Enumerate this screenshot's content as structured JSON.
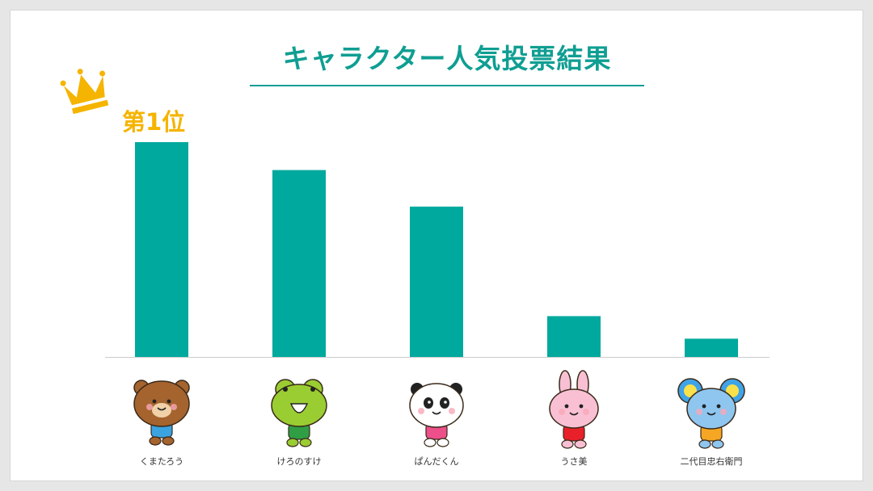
{
  "title": "キャラクター人気投票結果",
  "rank_badge": {
    "text": "第1位",
    "icon": "crown-icon",
    "color": "#f5b400"
  },
  "colors": {
    "bar": "#00a99d",
    "title": "#0f9e92",
    "baseline": "#cccccc"
  },
  "chart_data": {
    "type": "bar",
    "title": "キャラクター人気投票結果",
    "categories": [
      "くまたろう",
      "けろのすけ",
      "ぱんだくん",
      "うさ美",
      "二代目忠右衛門"
    ],
    "values": [
      100,
      87,
      70,
      19,
      8.5
    ],
    "ylim": [
      0,
      100
    ],
    "grid": false,
    "axes_visible": false,
    "icons": [
      "bear-character-icon",
      "frog-character-icon",
      "panda-character-icon",
      "rabbit-character-icon",
      "mouse-character-icon"
    ]
  }
}
